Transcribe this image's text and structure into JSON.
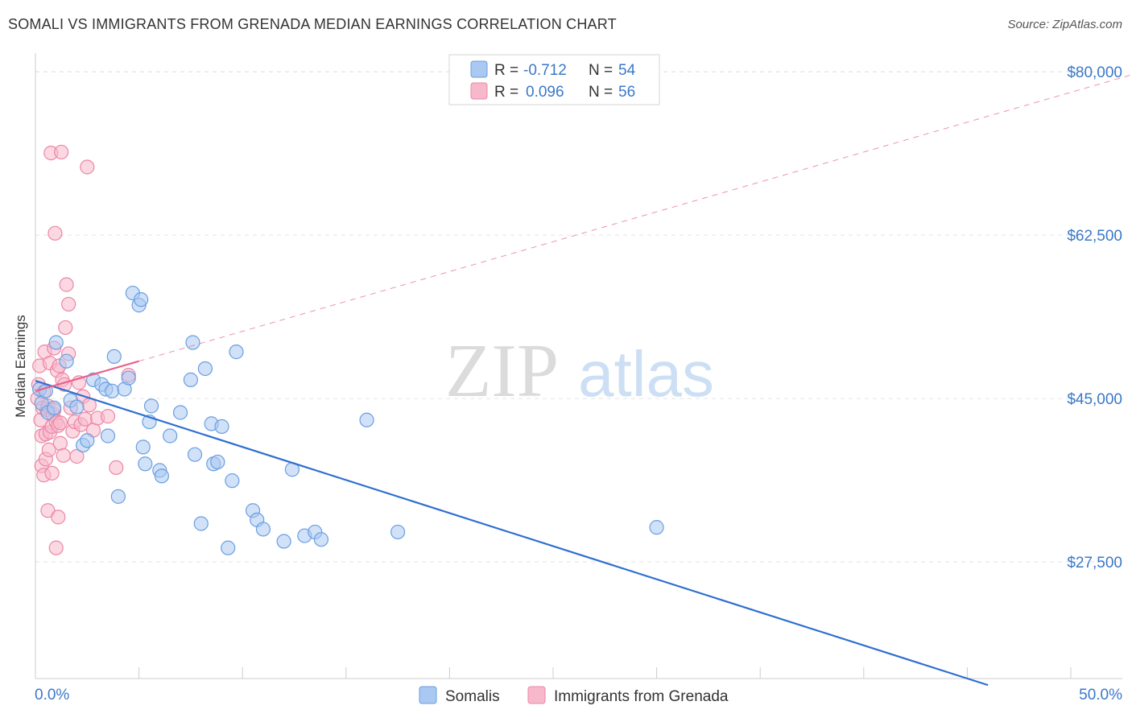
{
  "title": "SOMALI VS IMMIGRANTS FROM GRENADA MEDIAN EARNINGS CORRELATION CHART",
  "source": "Source: ZipAtlas.com",
  "watermark": {
    "zip": "ZIP",
    "atlas": "atlas"
  },
  "colors": {
    "blue_fill": "#a9c8f2",
    "blue_stroke": "#6a9fe0",
    "blue_line": "#2f6fd0",
    "pink_fill": "#f7b8cb",
    "pink_stroke": "#ec87a7",
    "pink_line": "#e8638d",
    "axis_text": "#3a78c9",
    "grid": "#e3e3e3"
  },
  "legend": {
    "rows": [
      {
        "r_label": "R =",
        "r_value": "-0.712",
        "n_label": "N =",
        "n_value": "54"
      },
      {
        "r_label": "R =",
        "r_value": "0.096",
        "n_label": "N =",
        "n_value": "56"
      }
    ]
  },
  "bottom_legend": [
    "Somalis",
    "Immigrants from Grenada"
  ],
  "chart_data": {
    "type": "scatter",
    "title": "SOMALI VS IMMIGRANTS FROM GRENADA MEDIAN EARNINGS CORRELATION CHART",
    "xlabel": "",
    "ylabel": "Median Earnings",
    "xlim": [
      0,
      50
    ],
    "ylim": [
      15000,
      82000
    ],
    "x_tick_labels": [
      "0.0%",
      "50.0%"
    ],
    "y_ticks": [
      27500,
      45000,
      62500,
      80000
    ],
    "y_tick_labels": [
      "$27,500",
      "$45,000",
      "$62,500",
      "$80,000"
    ],
    "grid": "horizontal dashed",
    "legend_placement": "top-center",
    "series": [
      {
        "name": "Somalis",
        "color": "blue",
        "r": -0.712,
        "n": 54,
        "trend": {
          "x": [
            0,
            46
          ],
          "y": [
            46900,
            14300
          ]
        },
        "x": [
          0.2,
          0.3,
          0.5,
          0.6,
          0.9,
          1.0,
          1.5,
          1.7,
          2.0,
          2.3,
          2.5,
          2.8,
          3.2,
          3.4,
          3.5,
          3.7,
          3.8,
          4.0,
          4.3,
          4.5,
          4.7,
          5.0,
          5.1,
          5.2,
          5.3,
          5.5,
          5.6,
          6.0,
          6.1,
          6.5,
          7.0,
          7.5,
          7.6,
          7.7,
          8.0,
          8.2,
          8.5,
          8.6,
          8.8,
          9.0,
          9.3,
          9.5,
          9.7,
          10.5,
          10.7,
          11.0,
          12.0,
          12.4,
          13.0,
          13.5,
          13.8,
          16.0,
          17.5,
          30.0
        ],
        "y": [
          46000,
          44500,
          45800,
          43500,
          44000,
          51000,
          49000,
          44800,
          44100,
          40000,
          40500,
          47000,
          46500,
          46000,
          41000,
          45800,
          49500,
          34500,
          46000,
          47200,
          56300,
          55000,
          55600,
          39800,
          38000,
          42500,
          44200,
          37300,
          36700,
          41000,
          43500,
          47000,
          51000,
          39000,
          31600,
          48200,
          42300,
          38000,
          38200,
          42000,
          29000,
          36200,
          50000,
          33000,
          32000,
          31000,
          29700,
          37400,
          30300,
          30700,
          29900,
          42700,
          30700,
          31200
        ]
      },
      {
        "name": "Immigrants from Grenada",
        "color": "pink",
        "r": 0.096,
        "n": 56,
        "trend": {
          "x": [
            0,
            5.0
          ],
          "y": [
            45800,
            49000
          ]
        },
        "x": [
          0.1,
          0.15,
          0.2,
          0.25,
          0.3,
          0.3,
          0.35,
          0.4,
          0.4,
          0.45,
          0.5,
          0.5,
          0.55,
          0.6,
          0.6,
          0.65,
          0.7,
          0.7,
          0.75,
          0.8,
          0.8,
          0.85,
          0.9,
          0.9,
          0.95,
          1.0,
          1.0,
          1.05,
          1.1,
          1.1,
          1.15,
          1.2,
          1.2,
          1.25,
          1.3,
          1.35,
          1.4,
          1.45,
          1.5,
          1.6,
          1.6,
          1.7,
          1.8,
          1.9,
          2.0,
          2.1,
          2.2,
          2.3,
          2.4,
          2.5,
          2.6,
          2.8,
          3.0,
          3.5,
          3.9,
          4.5
        ],
        "y": [
          45000,
          46500,
          48500,
          42700,
          41000,
          37800,
          44000,
          45700,
          36800,
          50000,
          41200,
          38500,
          43800,
          44200,
          33000,
          39500,
          41400,
          48800,
          71300,
          42000,
          37000,
          43300,
          43800,
          50400,
          62700,
          42500,
          29000,
          48000,
          42100,
          32300,
          48500,
          42400,
          40200,
          71400,
          47000,
          38900,
          46500,
          52600,
          57200,
          55100,
          49800,
          44000,
          41500,
          42500,
          38800,
          46700,
          42200,
          45200,
          42800,
          69800,
          44300,
          41600,
          42900,
          43100,
          37600,
          47500
        ]
      }
    ]
  }
}
